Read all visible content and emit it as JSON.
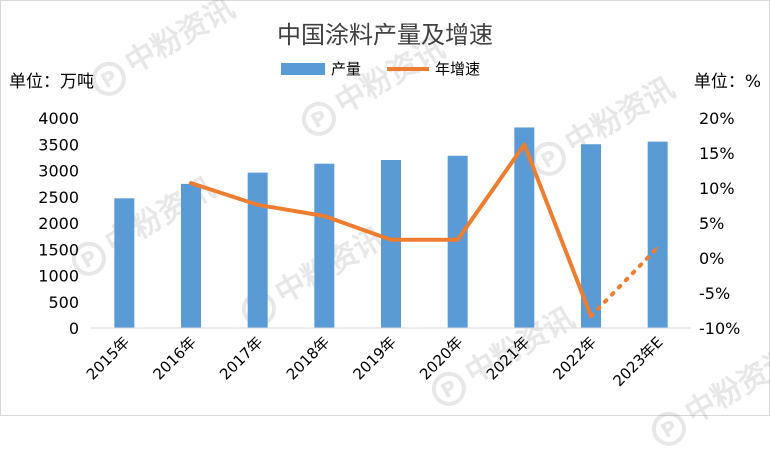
{
  "chart_data": {
    "type": "bar",
    "title": "中国涂料产量及增速",
    "left_unit": "单位：万吨",
    "right_unit": "单位：%",
    "categories": [
      "2015年",
      "2016年",
      "2017年",
      "2018年",
      "2019年",
      "2020年",
      "2021年",
      "2022年",
      "2023年E"
    ],
    "series": [
      {
        "name": "产量",
        "type": "bar",
        "axis": "left",
        "color": "#5b9bd5",
        "values": [
          2470,
          2745,
          2960,
          3130,
          3200,
          3280,
          3820,
          3500,
          3550
        ]
      },
      {
        "name": "年增速",
        "type": "line",
        "axis": "right",
        "color": "#ed7d31",
        "values": [
          null,
          10.7,
          7.6,
          6.0,
          2.6,
          2.6,
          16.2,
          -8.3,
          1.5
        ],
        "dashed_from_index": 7
      }
    ],
    "y_left": {
      "min": 0,
      "max": 4000,
      "step": 500,
      "ticks": [
        "0",
        "500",
        "1000",
        "1500",
        "2000",
        "2500",
        "3000",
        "3500",
        "4000"
      ]
    },
    "y_right": {
      "min": -10,
      "max": 20,
      "step": 5,
      "ticks": [
        "-10%",
        "-5%",
        "0%",
        "5%",
        "10%",
        "15%",
        "20%"
      ]
    },
    "legend_position": "top-center",
    "grid": false
  },
  "watermark": {
    "text": "中粉资讯",
    "logo_text": "P"
  }
}
